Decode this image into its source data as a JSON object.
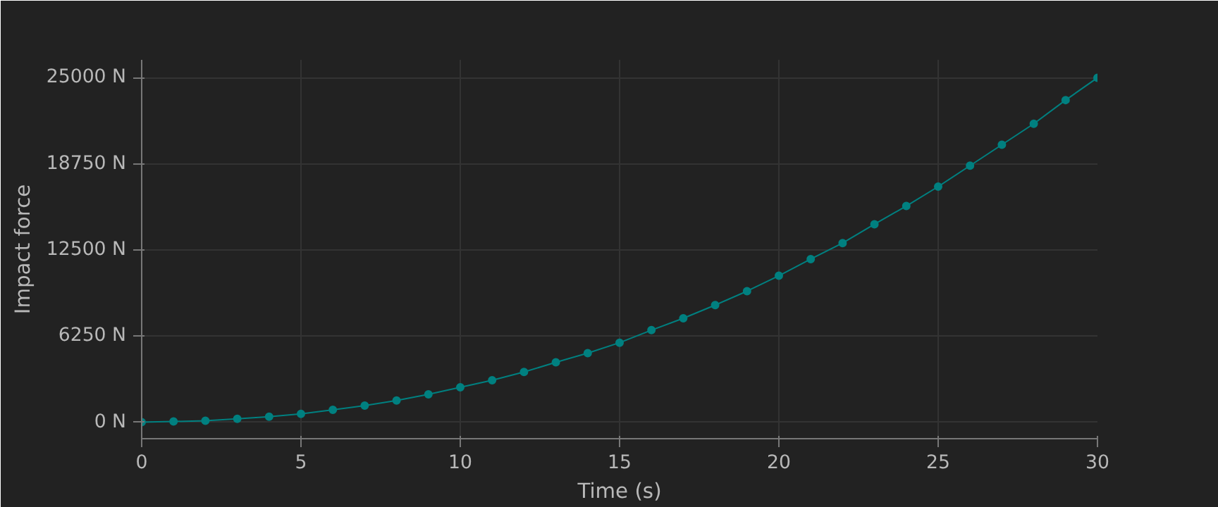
{
  "chart_data": {
    "type": "line",
    "xlabel": "Time (s)",
    "ylabel": "Impact force",
    "x": [
      0,
      1,
      2,
      3,
      4,
      5,
      6,
      7,
      8,
      9,
      10,
      11,
      12,
      13,
      14,
      15,
      16,
      17,
      18,
      19,
      20,
      21,
      22,
      23,
      24,
      25,
      26,
      27,
      28,
      29,
      30
    ],
    "series": [
      {
        "color": "#008080",
        "values": [
          0,
          50,
          100,
          250,
          400,
          600,
          900,
          1200,
          1570,
          2020,
          2530,
          3040,
          3640,
          4350,
          5010,
          5770,
          6680,
          7540,
          8500,
          9510,
          10630,
          11840,
          13000,
          14370,
          15690,
          17100,
          18620,
          20140,
          21660,
          23380,
          25000
        ]
      }
    ],
    "xlim": [
      0,
      30
    ],
    "ylim": [
      -1200,
      26300
    ],
    "xticks": [
      0,
      5,
      10,
      15,
      20,
      25,
      30
    ],
    "yticks": [
      {
        "value": 0,
        "label": "0 N"
      },
      {
        "value": 6250,
        "label": "6250 N"
      },
      {
        "value": 12500,
        "label": "12500 N"
      },
      {
        "value": 18750,
        "label": "18750 N"
      },
      {
        "value": 25000,
        "label": "25000 N"
      }
    ],
    "grid": true,
    "marker": "circle",
    "line_style": "solid"
  }
}
